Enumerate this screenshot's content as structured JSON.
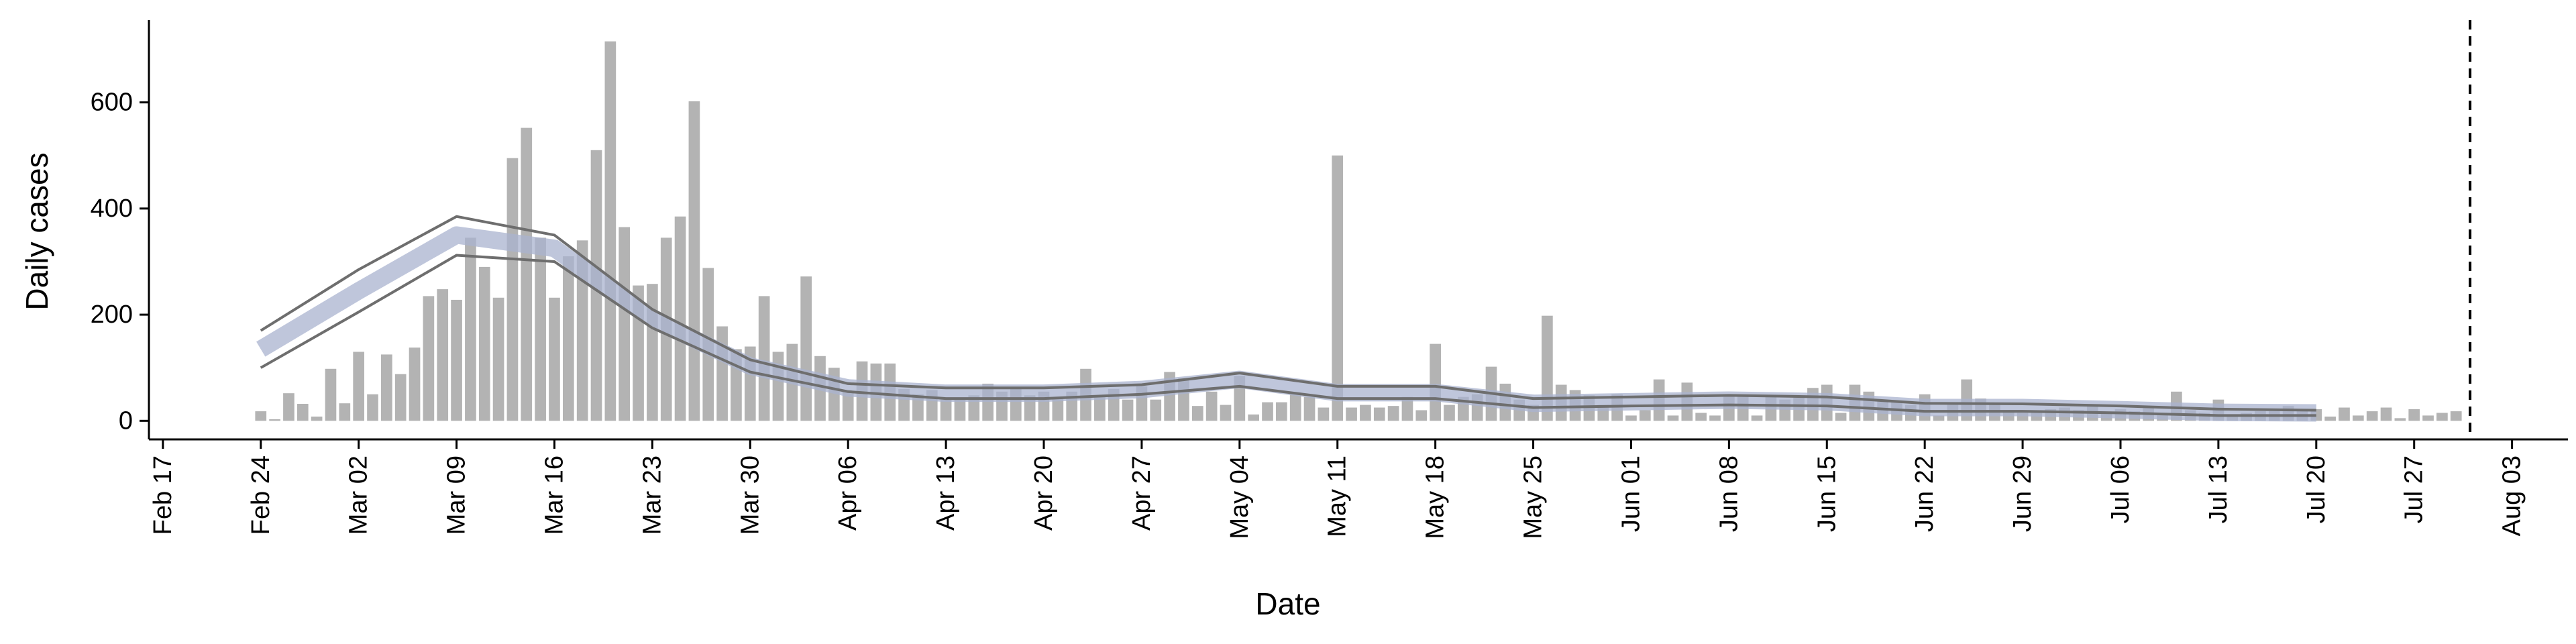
{
  "chart_data": {
    "type": "bar",
    "x_label": "Date",
    "y_label": "Daily cases",
    "x": [
      "Feb 24",
      "Feb 25",
      "Feb 26",
      "Feb 27",
      "Feb 28",
      "Feb 29",
      "Mar 01",
      "Mar 02",
      "Mar 03",
      "Mar 04",
      "Mar 05",
      "Mar 06",
      "Mar 07",
      "Mar 08",
      "Mar 09",
      "Mar 10",
      "Mar 11",
      "Mar 12",
      "Mar 13",
      "Mar 14",
      "Mar 15",
      "Mar 16",
      "Mar 17",
      "Mar 18",
      "Mar 19",
      "Mar 20",
      "Mar 21",
      "Mar 22",
      "Mar 23",
      "Mar 24",
      "Mar 25",
      "Mar 26",
      "Mar 27",
      "Mar 28",
      "Mar 29",
      "Mar 30",
      "Mar 31",
      "Apr 01",
      "Apr 02",
      "Apr 03",
      "Apr 04",
      "Apr 05",
      "Apr 06",
      "Apr 07",
      "Apr 08",
      "Apr 09",
      "Apr 10",
      "Apr 11",
      "Apr 12",
      "Apr 13",
      "Apr 14",
      "Apr 15",
      "Apr 16",
      "Apr 17",
      "Apr 18",
      "Apr 19",
      "Apr 20",
      "Apr 21",
      "Apr 22",
      "Apr 23",
      "Apr 24",
      "Apr 25",
      "Apr 26",
      "Apr 27",
      "Apr 28",
      "Apr 29",
      "Apr 30",
      "May 01",
      "May 02",
      "May 03",
      "May 04",
      "May 05",
      "May 06",
      "May 07",
      "May 08",
      "May 09",
      "May 10",
      "May 11",
      "May 12",
      "May 13",
      "May 14",
      "May 15",
      "May 16",
      "May 17",
      "May 18",
      "May 19",
      "May 20",
      "May 21",
      "May 22",
      "May 23",
      "May 24",
      "May 25",
      "May 26",
      "May 27",
      "May 28",
      "May 29",
      "May 30",
      "May 31",
      "Jun 01",
      "Jun 02",
      "Jun 03",
      "Jun 04",
      "Jun 05",
      "Jun 06",
      "Jun 07",
      "Jun 08",
      "Jun 09",
      "Jun 10",
      "Jun 11",
      "Jun 12",
      "Jun 13",
      "Jun 14",
      "Jun 15",
      "Jun 16",
      "Jun 17",
      "Jun 18",
      "Jun 19",
      "Jun 20",
      "Jun 21",
      "Jun 22",
      "Jun 23",
      "Jun 24",
      "Jun 25",
      "Jun 26",
      "Jun 27",
      "Jun 28",
      "Jun 29",
      "Jun 30",
      "Jul 01",
      "Jul 02",
      "Jul 03",
      "Jul 04",
      "Jul 05",
      "Jul 06",
      "Jul 07",
      "Jul 08",
      "Jul 09",
      "Jul 10",
      "Jul 11",
      "Jul 12",
      "Jul 13",
      "Jul 14",
      "Jul 15",
      "Jul 16",
      "Jul 17",
      "Jul 18",
      "Jul 19",
      "Jul 20",
      "Jul 21",
      "Jul 22",
      "Jul 23",
      "Jul 24",
      "Jul 25",
      "Jul 26",
      "Jul 27",
      "Jul 28",
      "Jul 29",
      "Jul 30"
    ],
    "values": [
      18,
      3,
      52,
      32,
      8,
      98,
      33,
      130,
      50,
      125,
      88,
      138,
      235,
      248,
      228,
      345,
      290,
      232,
      495,
      552,
      345,
      232,
      310,
      340,
      510,
      715,
      365,
      255,
      258,
      345,
      385,
      602,
      288,
      178,
      135,
      140,
      235,
      130,
      145,
      272,
      122,
      100,
      55,
      112,
      108,
      108,
      60,
      50,
      58,
      40,
      42,
      48,
      70,
      55,
      62,
      48,
      55,
      42,
      55,
      98,
      45,
      60,
      40,
      65,
      40,
      92,
      80,
      28,
      55,
      30,
      85,
      12,
      35,
      35,
      50,
      45,
      25,
      500,
      25,
      30,
      25,
      28,
      45,
      20,
      145,
      30,
      45,
      50,
      102,
      70,
      40,
      30,
      198,
      68,
      58,
      48,
      30,
      50,
      10,
      20,
      78,
      10,
      72,
      15,
      10,
      50,
      48,
      10,
      45,
      40,
      45,
      62,
      68,
      15,
      68,
      55,
      38,
      35,
      30,
      50,
      10,
      35,
      78,
      42,
      30,
      20,
      15,
      20,
      22,
      25,
      20,
      30,
      15,
      22,
      18,
      28,
      15,
      55,
      20,
      15,
      40,
      10,
      15,
      18,
      18,
      28,
      20,
      22,
      8,
      25,
      10,
      18,
      25,
      5,
      22,
      10,
      15,
      18
    ],
    "color": "#b3b3b3",
    "line_x": [
      "Feb 24",
      "Mar 02",
      "Mar 09",
      "Mar 16",
      "Mar 23",
      "Mar 30",
      "Apr 06",
      "Apr 13",
      "Apr 20",
      "Apr 27",
      "May 04",
      "May 11",
      "May 18",
      "May 25",
      "Jun 01",
      "Jun 08",
      "Jun 15",
      "Jun 22",
      "Jun 29",
      "Jul 06",
      "Jul 13",
      "Jul 20"
    ],
    "lines": [
      {
        "color": "#a9b3cf",
        "values": [
          135,
          245,
          350,
          325,
          192,
          103,
          62,
          52,
          52,
          59,
          78,
          53,
          53,
          33,
          36,
          39,
          36,
          25,
          25,
          21,
          16,
          15
        ]
      },
      {
        "color": "#6e6e6e",
        "values": [
          170,
          285,
          385,
          350,
          210,
          115,
          70,
          62,
          62,
          68,
          90,
          65,
          65,
          42,
          45,
          48,
          45,
          33,
          32,
          28,
          22,
          20
        ]
      },
      {
        "color": "#6e6e6e",
        "values": [
          100,
          205,
          312,
          300,
          175,
          92,
          55,
          42,
          42,
          50,
          65,
          42,
          42,
          25,
          28,
          30,
          28,
          18,
          18,
          15,
          10,
          10
        ]
      }
    ],
    "vline": "Jul 31",
    "xlim": [
      "Feb 16",
      "Aug 07"
    ],
    "xticks": [
      "Feb 17",
      "Feb 24",
      "Mar 02",
      "Mar 09",
      "Mar 16",
      "Mar 23",
      "Mar 30",
      "Apr 06",
      "Apr 13",
      "Apr 20",
      "Apr 27",
      "May 04",
      "May 11",
      "May 18",
      "May 25",
      "Jun 01",
      "Jun 08",
      "Jun 15",
      "Jun 22",
      "Jun 29",
      "Jul 06",
      "Jul 13",
      "Jul 20",
      "Jul 27",
      "Aug 03"
    ],
    "ylim": [
      -35,
      755
    ],
    "yticks": [
      0,
      200,
      400,
      600
    ]
  }
}
